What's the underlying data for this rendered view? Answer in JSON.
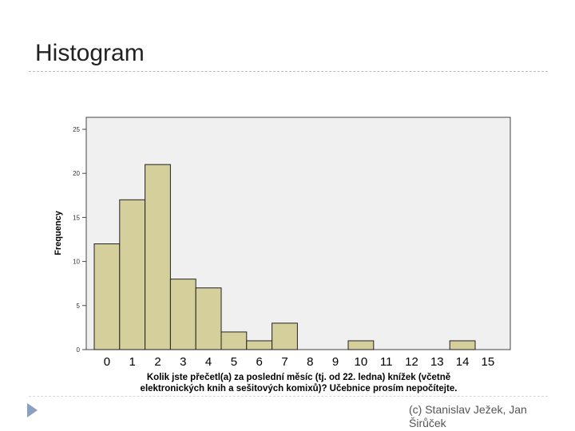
{
  "slide": {
    "title": "Histogram",
    "footer": "(c) Stanislav Ježek, Jan Širůček"
  },
  "chart_data": {
    "type": "bar",
    "title": "",
    "categories": [
      "0",
      "1",
      "2",
      "3",
      "4",
      "5",
      "6",
      "7",
      "8",
      "9",
      "10",
      "11",
      "12",
      "13",
      "14",
      "15"
    ],
    "values": [
      12,
      17,
      21,
      8,
      7,
      2,
      1,
      3,
      0,
      0,
      1,
      0,
      0,
      0,
      1,
      0
    ],
    "ylabel": "Frequency",
    "xlabel_lines": [
      "Kolik jste přečetl(a) za poslední měsíc (tj. od 22. ledna) knížek (včetně",
      "elektronických knih a sešitových komixů)? Učebnice prosím nepočítejte."
    ],
    "ylim": [
      0,
      25
    ],
    "yticks": [
      0,
      5,
      10,
      15,
      20,
      25
    ],
    "grid": false,
    "bar_color": "#d5cf9c",
    "plot_bg": "#f0f0f0"
  }
}
